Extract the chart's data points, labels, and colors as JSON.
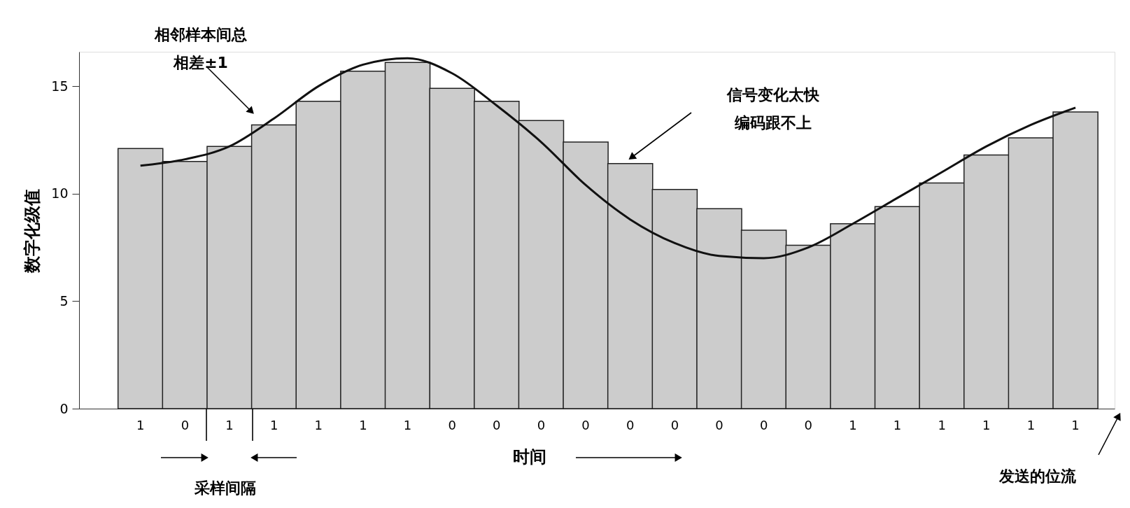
{
  "chart_data": {
    "type": "bar",
    "xlabel": "时间",
    "ylabel": "数字化级值",
    "categories": [
      "1",
      "0",
      "1",
      "1",
      "1",
      "1",
      "1",
      "0",
      "0",
      "0",
      "0",
      "0",
      "0",
      "0",
      "0",
      "0",
      "1",
      "1",
      "1",
      "1",
      "1",
      "1"
    ],
    "ylim": [
      0,
      16.6
    ],
    "yticks": [
      0,
      5,
      10,
      15
    ],
    "grid": false,
    "series": [
      {
        "color": "#cccccc",
        "values": [
          12.1,
          11.5,
          12.2,
          13.2,
          14.3,
          15.7,
          16.1,
          14.9,
          14.3,
          13.4,
          12.4,
          11.4,
          10.2,
          9.3,
          8.3,
          7.6,
          8.6,
          9.4,
          10.5,
          11.8,
          12.6,
          13.8
        ]
      },
      {
        "type": "line",
        "color": "#111111",
        "values": [
          11.3,
          11.6,
          12.2,
          13.5,
          15.0,
          16.0,
          16.3,
          15.6,
          14.1,
          12.4,
          10.4,
          8.8,
          7.7,
          7.1,
          7.0,
          7.5,
          8.6,
          9.8,
          11.0,
          12.2,
          13.2,
          14.0
        ]
      }
    ],
    "annotations": [
      "相邻样本间总相差±1",
      "信号变化太快编码跟不上",
      "采样间隔",
      "发送的位流"
    ]
  }
}
